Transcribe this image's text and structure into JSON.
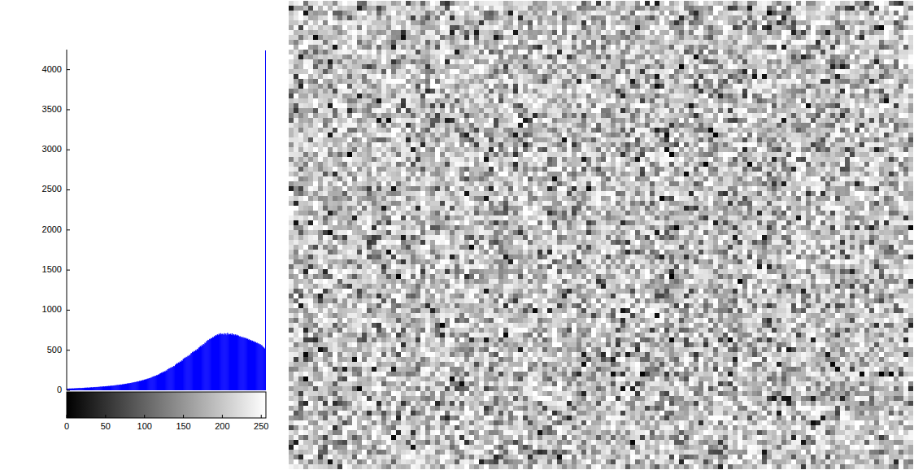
{
  "chart_data": {
    "type": "histogram",
    "color": "#0000ff",
    "xlim": [
      0,
      256
    ],
    "ylim": [
      0,
      4250
    ],
    "xticks": [
      0,
      50,
      100,
      150,
      200,
      250
    ],
    "yticks": [
      0,
      500,
      1000,
      1500,
      2000,
      2500,
      3000,
      3500,
      4000
    ],
    "bins": [
      0,
      1,
      2,
      3,
      4,
      5,
      6,
      7,
      8,
      9,
      10,
      11,
      12,
      13,
      14,
      15,
      16,
      17,
      18,
      19,
      20,
      21,
      22,
      23,
      24,
      25,
      26,
      27,
      28,
      29,
      30,
      31,
      32,
      33,
      34,
      35,
      36,
      37,
      38,
      39,
      40,
      41,
      42,
      43,
      44,
      45,
      46,
      47,
      48,
      49,
      50,
      51,
      52,
      53,
      54,
      55,
      56,
      57,
      58,
      59,
      60,
      61,
      62,
      63,
      64,
      65,
      66,
      67,
      68,
      69,
      70,
      71,
      72,
      73,
      74,
      75,
      76,
      77,
      78,
      79,
      80,
      81,
      82,
      83,
      84,
      85,
      86,
      87,
      88,
      89,
      90,
      91,
      92,
      93,
      94,
      95,
      96,
      97,
      98,
      99,
      100,
      101,
      102,
      103,
      104,
      105,
      106,
      107,
      108,
      109,
      110,
      111,
      112,
      113,
      114,
      115,
      116,
      117,
      118,
      119,
      120,
      121,
      122,
      123,
      124,
      125,
      126,
      127,
      128,
      129,
      130,
      131,
      132,
      133,
      134,
      135,
      136,
      137,
      138,
      139,
      140,
      141,
      142,
      143,
      144,
      145,
      146,
      147,
      148,
      149,
      150,
      151,
      152,
      153,
      154,
      155,
      156,
      157,
      158,
      159,
      160,
      161,
      162,
      163,
      164,
      165,
      166,
      167,
      168,
      169,
      170,
      171,
      172,
      173,
      174,
      175,
      176,
      177,
      178,
      179,
      180,
      181,
      182,
      183,
      184,
      185,
      186,
      187,
      188,
      189,
      190,
      191,
      192,
      193,
      194,
      195,
      196,
      197,
      198,
      199,
      200,
      201,
      202,
      203,
      204,
      205,
      206,
      207,
      208,
      209,
      210,
      211,
      212,
      213,
      214,
      215,
      216,
      217,
      218,
      219,
      220,
      221,
      222,
      223,
      224,
      225,
      226,
      227,
      228,
      229,
      230,
      231,
      232,
      233,
      234,
      235,
      236,
      237,
      238,
      239,
      240,
      241,
      242,
      243,
      244,
      245,
      246,
      247,
      248,
      249,
      250,
      251,
      252,
      253,
      254,
      255,
      256
    ],
    "values": [
      18,
      22,
      19,
      23,
      21,
      24,
      20,
      25,
      22,
      24,
      26,
      23,
      28,
      25,
      29,
      27,
      31,
      26,
      30,
      28,
      31,
      29,
      33,
      30,
      34,
      32,
      35,
      31,
      36,
      33,
      36,
      38,
      34,
      39,
      37,
      41,
      38,
      42,
      39,
      43,
      41,
      45,
      43,
      47,
      44,
      48,
      46,
      50,
      47,
      51,
      49,
      53,
      51,
      55,
      52,
      57,
      54,
      59,
      56,
      60,
      58,
      63,
      61,
      66,
      64,
      68,
      65,
      71,
      69,
      73,
      70,
      76,
      74,
      79,
      77,
      82,
      80,
      86,
      84,
      89,
      87,
      92,
      90,
      96,
      94,
      100,
      98,
      104,
      102,
      108,
      106,
      113,
      110,
      118,
      115,
      123,
      120,
      128,
      126,
      134,
      132,
      140,
      137,
      146,
      143,
      152,
      149,
      158,
      155,
      166,
      168,
      175,
      173,
      182,
      180,
      190,
      188,
      198,
      196,
      208,
      212,
      220,
      218,
      230,
      226,
      238,
      235,
      248,
      245,
      262,
      265,
      276,
      272,
      285,
      280,
      294,
      290,
      305,
      300,
      318,
      326,
      338,
      333,
      348,
      344,
      360,
      355,
      372,
      368,
      390,
      396,
      408,
      404,
      418,
      413,
      430,
      425,
      442,
      438,
      460,
      465,
      480,
      474,
      490,
      486,
      502,
      498,
      516,
      510,
      532,
      536,
      552,
      545,
      565,
      558,
      578,
      572,
      594,
      588,
      612,
      616,
      630,
      624,
      642,
      636,
      652,
      648,
      664,
      660,
      676,
      674,
      690,
      682,
      698,
      688,
      705,
      694,
      712,
      698,
      706,
      702,
      690,
      712,
      696,
      708,
      688,
      716,
      694,
      704,
      698,
      706,
      692,
      710,
      688,
      700,
      686,
      698,
      682,
      694,
      684,
      684,
      670,
      676,
      662,
      668,
      656,
      664,
      650,
      658,
      648,
      652,
      640,
      644,
      630,
      636,
      622,
      628,
      614,
      620,
      608,
      612,
      598,
      604,
      590,
      594,
      580,
      586,
      572,
      576,
      562,
      564,
      548,
      540,
      530,
      518,
      4240
    ]
  }
}
